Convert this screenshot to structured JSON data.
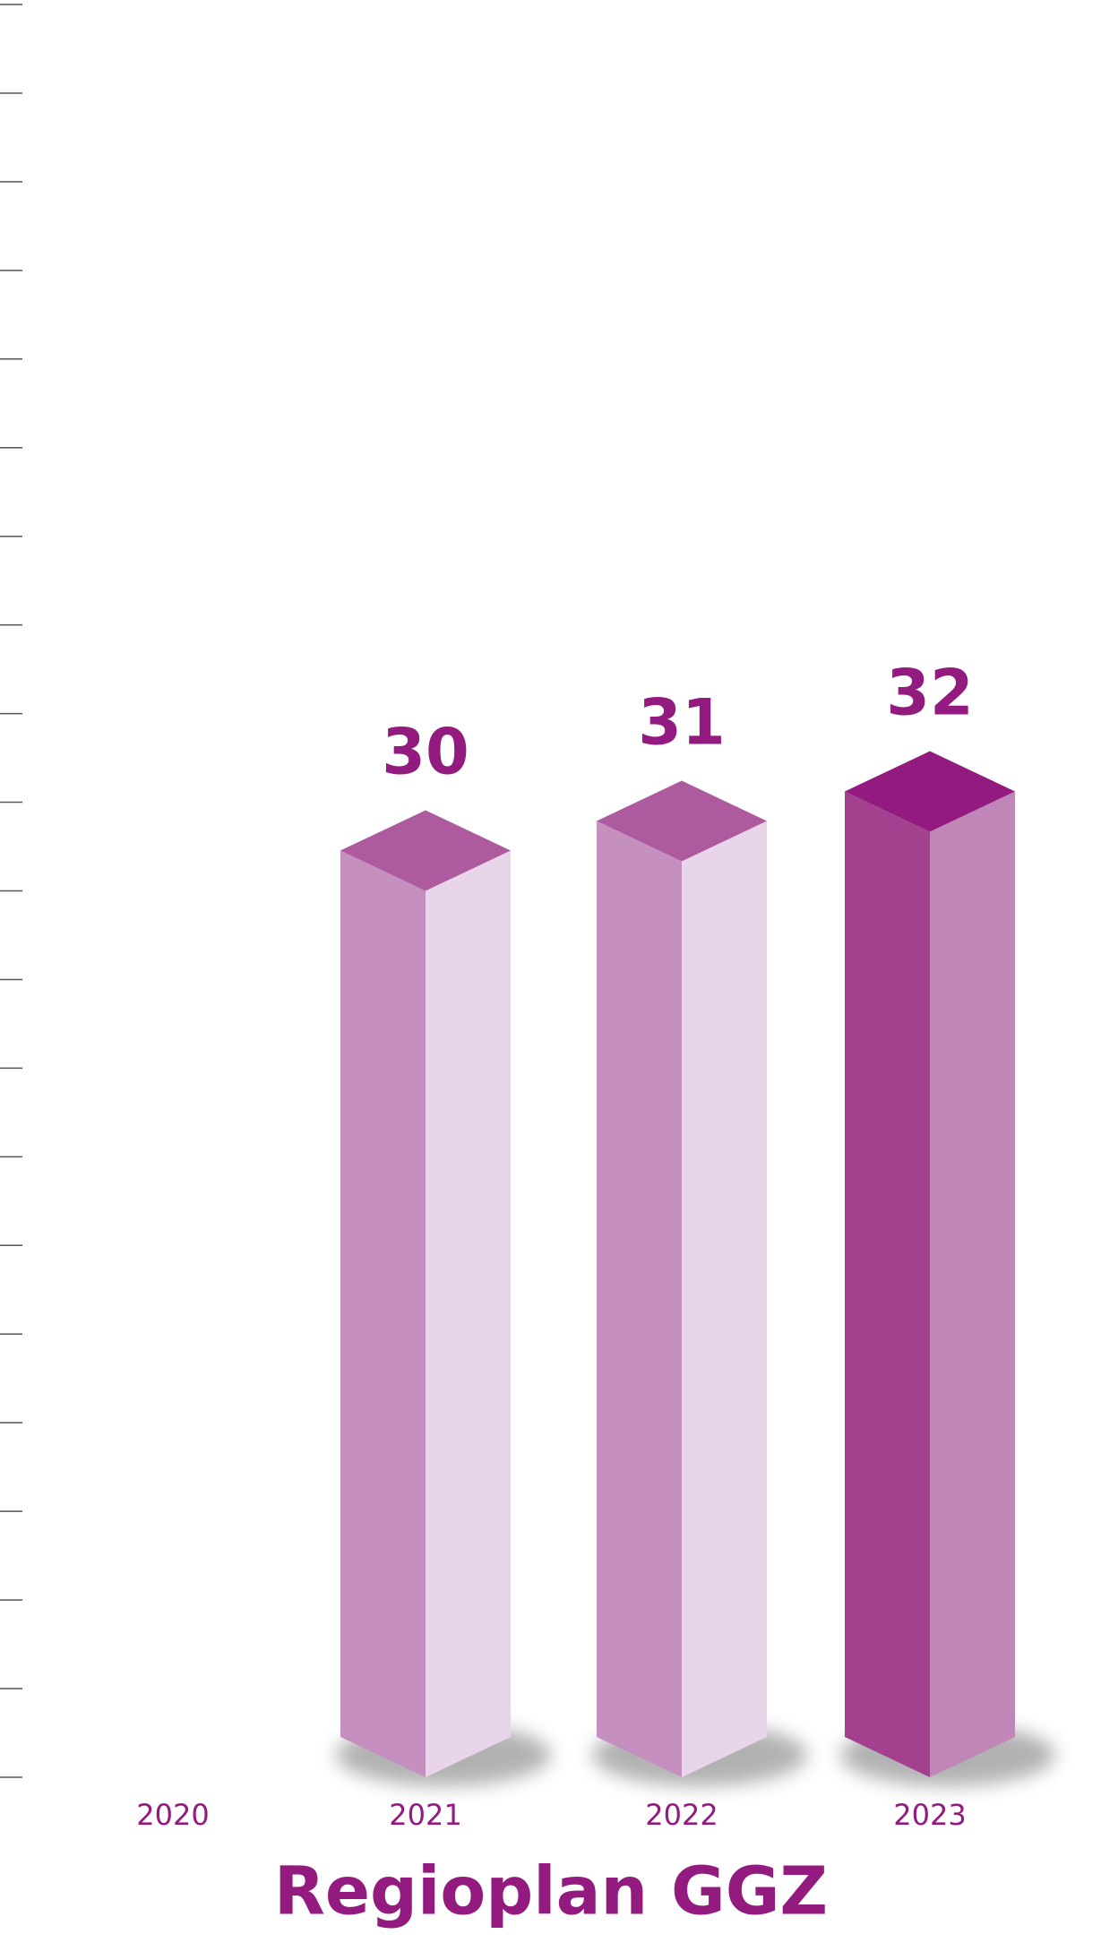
{
  "chart_data": {
    "type": "bar3d",
    "title": "Regioplan GGZ",
    "categories": [
      "2020",
      "2021",
      "2022",
      "2023"
    ],
    "values": [
      null,
      30,
      31,
      32
    ],
    "face_colors": {
      "left": "#c590c0",
      "right": "#e8d5e9",
      "top": "#ad5a9e"
    },
    "highlight_face_colors": {
      "left": "#a3418f",
      "right": "#c086b8",
      "top": "#931b7f"
    },
    "highlight": "2023",
    "text_color": "#931b7f",
    "ylim": [
      0,
      60
    ],
    "yticks": [
      0,
      3,
      6,
      9,
      12,
      15,
      18,
      21,
      24,
      27,
      30,
      33,
      36,
      39,
      42,
      45,
      48,
      51,
      54,
      57,
      60
    ]
  }
}
